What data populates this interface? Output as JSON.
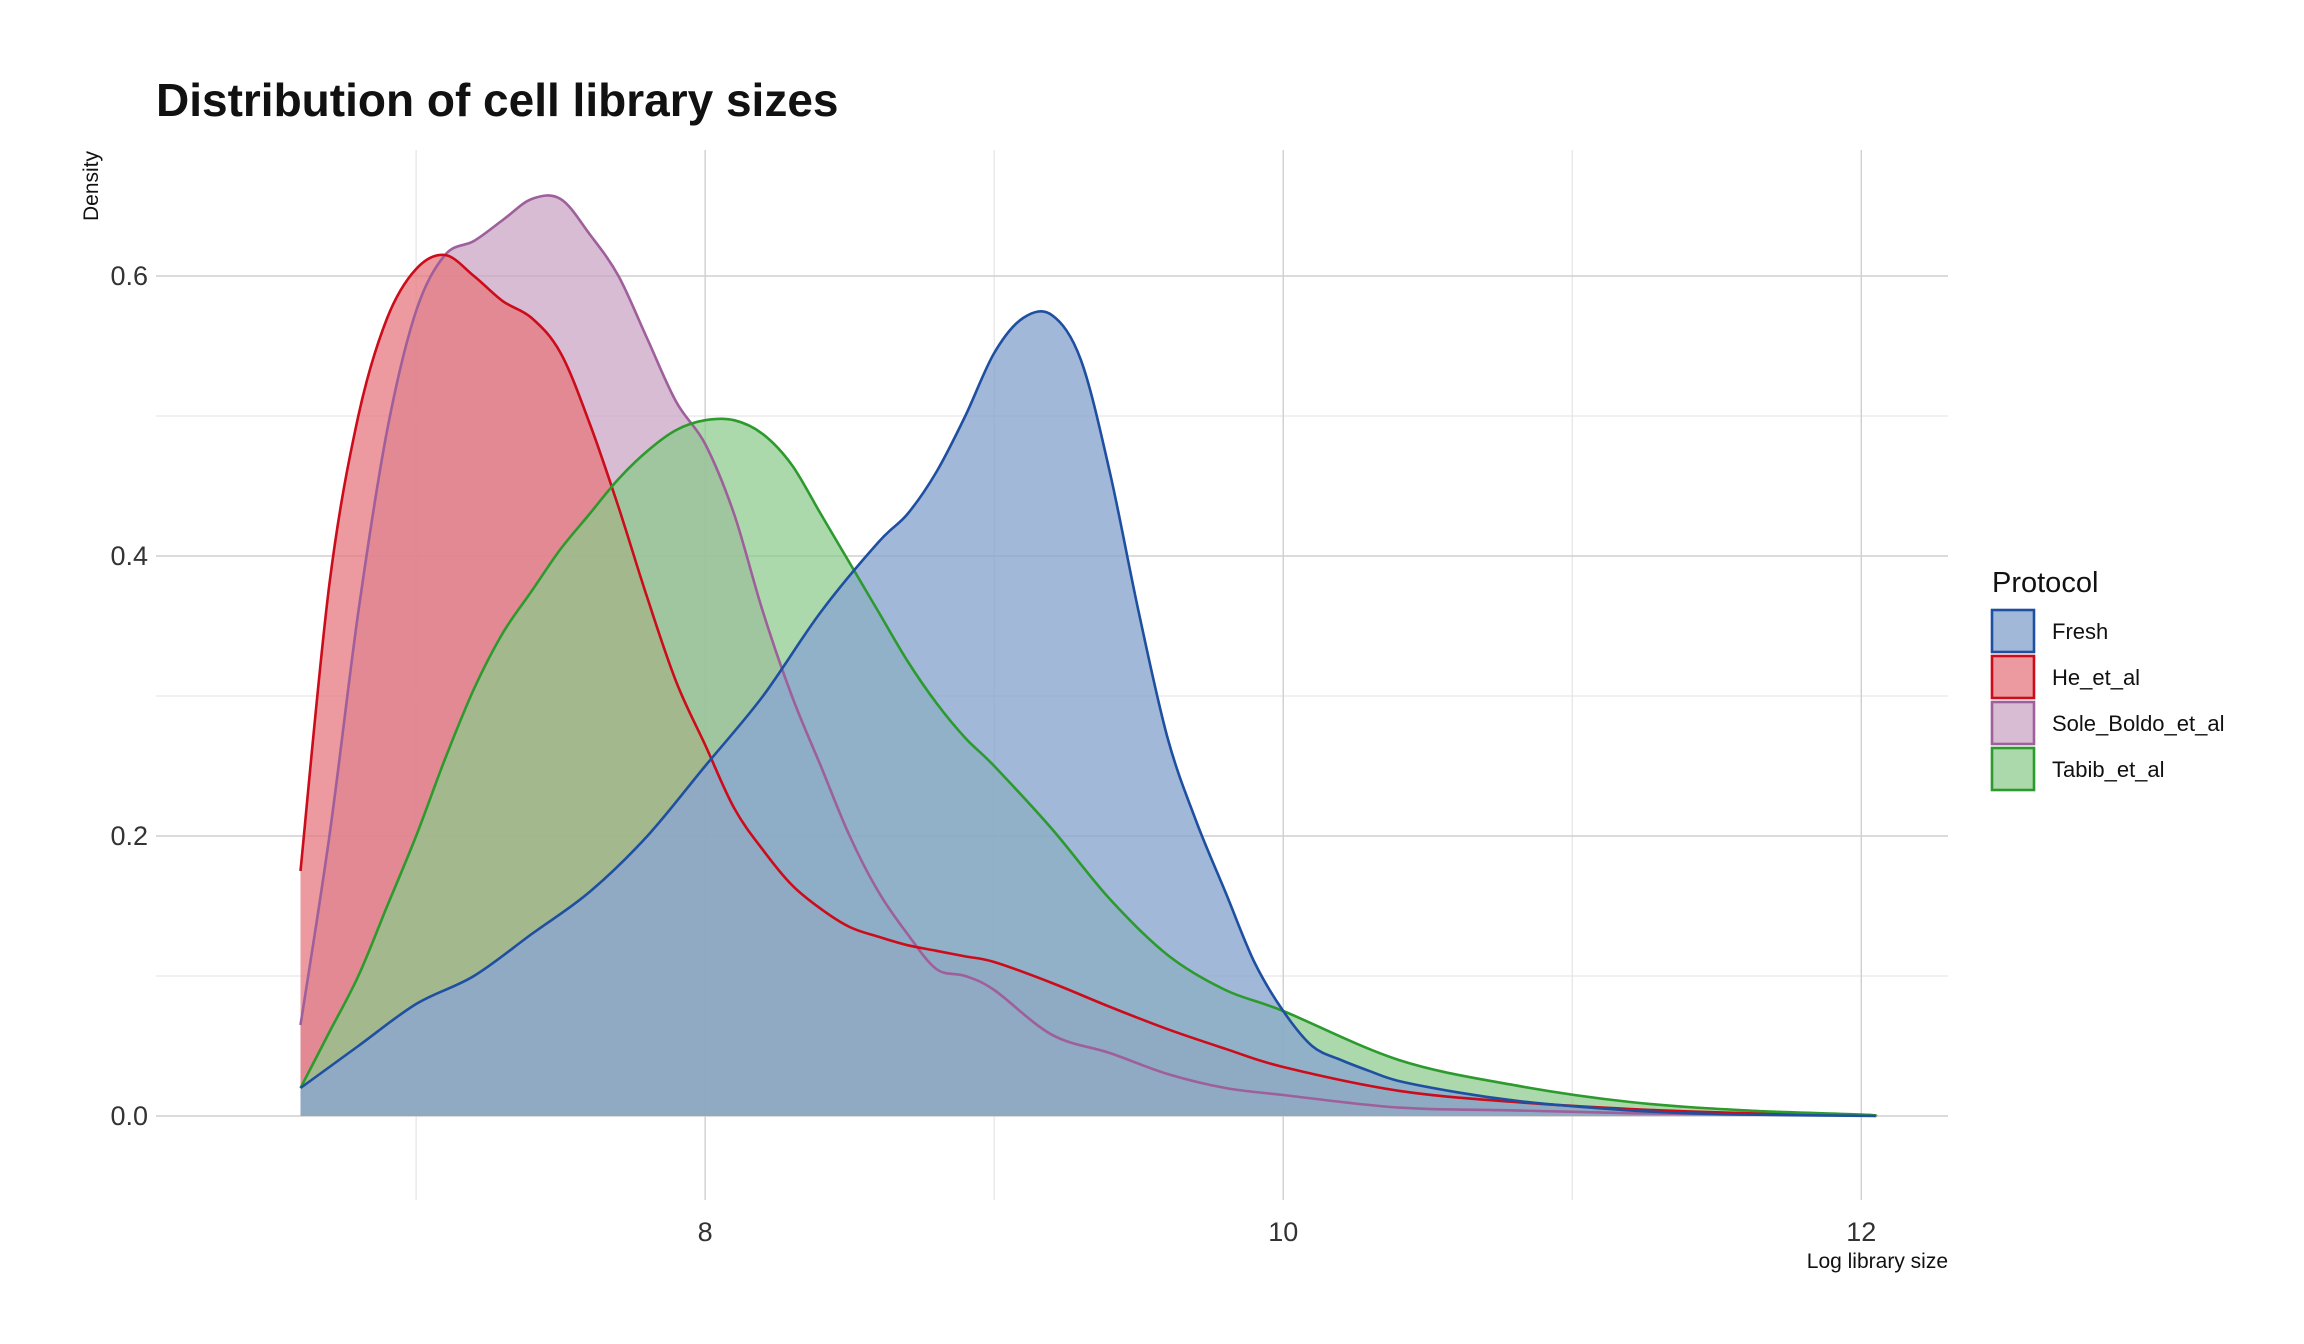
{
  "chart_data": {
    "type": "area",
    "title": "Distribution of cell library sizes",
    "xlabel": "Log library size",
    "ylabel": "Density",
    "xlim": [
      6.1,
      12.3
    ],
    "ylim": [
      -0.06,
      0.69
    ],
    "x_ticks": [
      8,
      10,
      12
    ],
    "y_ticks": [
      0.0,
      0.2,
      0.4,
      0.6
    ],
    "x_minor_ticks": [
      7,
      9,
      11
    ],
    "y_minor_ticks": [
      0.1,
      0.3,
      0.5
    ],
    "grid": true,
    "legend": {
      "title": "Protocol",
      "position": "right"
    },
    "series": [
      {
        "name": "Sole_Boldo_et_al",
        "line_color": "#9e5f9b",
        "fill_color": "#c9a6c6",
        "fill_opacity": 0.75,
        "x": [
          6.6,
          6.7,
          6.8,
          6.9,
          7.0,
          7.1,
          7.2,
          7.3,
          7.4,
          7.5,
          7.6,
          7.7,
          7.8,
          7.9,
          8.0,
          8.1,
          8.2,
          8.3,
          8.4,
          8.5,
          8.6,
          8.7,
          8.8,
          8.9,
          9.0,
          9.2,
          9.4,
          9.6,
          9.8,
          10.0,
          10.4,
          10.8,
          11.2,
          11.6,
          12.0,
          12.05
        ],
        "y": [
          0.065,
          0.2,
          0.36,
          0.49,
          0.575,
          0.615,
          0.625,
          0.64,
          0.655,
          0.655,
          0.63,
          0.6,
          0.555,
          0.51,
          0.48,
          0.43,
          0.36,
          0.3,
          0.25,
          0.2,
          0.16,
          0.13,
          0.105,
          0.1,
          0.09,
          0.058,
          0.045,
          0.03,
          0.02,
          0.015,
          0.006,
          0.004,
          0.002,
          0.001,
          0.0005,
          0.0
        ]
      },
      {
        "name": "He_et_al",
        "line_color": "#cc0c1a",
        "fill_color": "#e6787f",
        "fill_opacity": 0.75,
        "x": [
          6.6,
          6.7,
          6.8,
          6.9,
          7.0,
          7.1,
          7.2,
          7.3,
          7.4,
          7.5,
          7.6,
          7.7,
          7.8,
          7.9,
          8.0,
          8.1,
          8.2,
          8.3,
          8.4,
          8.5,
          8.6,
          8.7,
          8.8,
          8.9,
          9.0,
          9.2,
          9.4,
          9.6,
          9.8,
          10.0,
          10.4,
          10.8,
          11.2,
          11.6,
          12.0,
          12.05
        ],
        "y": [
          0.175,
          0.38,
          0.5,
          0.57,
          0.605,
          0.615,
          0.6,
          0.582,
          0.57,
          0.545,
          0.495,
          0.435,
          0.37,
          0.31,
          0.265,
          0.22,
          0.19,
          0.165,
          0.148,
          0.135,
          0.128,
          0.122,
          0.118,
          0.114,
          0.11,
          0.095,
          0.078,
          0.062,
          0.048,
          0.035,
          0.018,
          0.01,
          0.005,
          0.002,
          0.0008,
          0.0
        ]
      },
      {
        "name": "Tabib_et_al",
        "line_color": "#2c9a2c",
        "fill_color": "#8bcb8b",
        "fill_opacity": 0.72,
        "x": [
          6.6,
          6.7,
          6.8,
          6.9,
          7.0,
          7.1,
          7.2,
          7.3,
          7.4,
          7.5,
          7.6,
          7.7,
          7.8,
          7.9,
          8.0,
          8.1,
          8.2,
          8.3,
          8.4,
          8.5,
          8.6,
          8.7,
          8.8,
          8.9,
          9.0,
          9.2,
          9.4,
          9.6,
          9.8,
          10.0,
          10.4,
          10.8,
          11.2,
          11.6,
          12.0,
          12.05
        ],
        "y": [
          0.02,
          0.06,
          0.1,
          0.15,
          0.2,
          0.255,
          0.305,
          0.345,
          0.375,
          0.405,
          0.43,
          0.455,
          0.475,
          0.49,
          0.497,
          0.497,
          0.487,
          0.465,
          0.43,
          0.395,
          0.36,
          0.325,
          0.295,
          0.27,
          0.25,
          0.205,
          0.155,
          0.115,
          0.09,
          0.075,
          0.04,
          0.022,
          0.01,
          0.004,
          0.001,
          0.0
        ]
      },
      {
        "name": "Fresh",
        "line_color": "#1f4fa0",
        "fill_color": "#89a6cf",
        "fill_opacity": 0.8,
        "x": [
          6.6,
          6.8,
          7.0,
          7.2,
          7.4,
          7.6,
          7.8,
          8.0,
          8.2,
          8.4,
          8.6,
          8.7,
          8.8,
          8.9,
          9.0,
          9.1,
          9.2,
          9.3,
          9.4,
          9.5,
          9.6,
          9.7,
          9.8,
          9.9,
          10.0,
          10.1,
          10.2,
          10.3,
          10.4,
          10.6,
          10.8,
          11.0,
          11.2,
          11.4,
          11.6,
          12.05
        ],
        "y": [
          0.02,
          0.05,
          0.08,
          0.1,
          0.13,
          0.16,
          0.2,
          0.25,
          0.3,
          0.36,
          0.41,
          0.43,
          0.46,
          0.5,
          0.545,
          0.57,
          0.572,
          0.54,
          0.46,
          0.36,
          0.27,
          0.21,
          0.16,
          0.11,
          0.075,
          0.05,
          0.04,
          0.032,
          0.025,
          0.017,
          0.011,
          0.007,
          0.004,
          0.002,
          0.001,
          0.0
        ]
      }
    ],
    "legend_order": [
      "Fresh",
      "He_et_al",
      "Sole_Boldo_et_al",
      "Tabib_et_al"
    ]
  }
}
